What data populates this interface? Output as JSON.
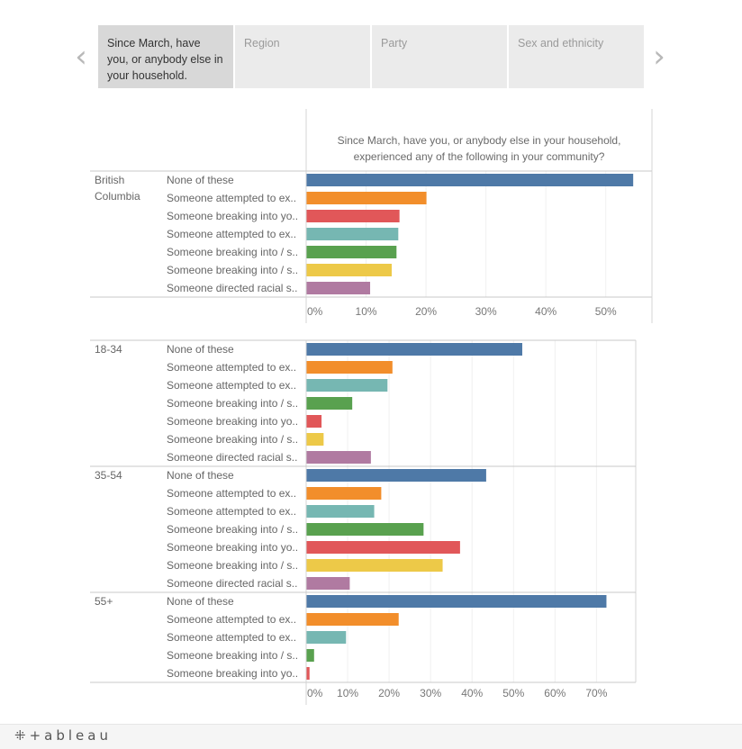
{
  "story_nav": {
    "prev_icon": "chevron-left-icon",
    "next_icon": "chevron-right-icon",
    "prev_glyph": "‹",
    "next_glyph": "›",
    "points": [
      {
        "label": "Since March, have you, or anybody else in your household.",
        "active": true
      },
      {
        "label": "Region",
        "active": false
      },
      {
        "label": "Party",
        "active": false
      },
      {
        "label": "Sex and ethnicity",
        "active": false
      }
    ]
  },
  "colors": {
    "blue": "#4e79a7",
    "orange": "#f28e2b",
    "red": "#e15759",
    "teal": "#76b7b2",
    "green": "#59a14f",
    "yellow": "#edc948",
    "purple": "#b07aa1"
  },
  "chart_data": [
    {
      "type": "bar",
      "orientation": "horizontal",
      "title": "Since March, have you, or anybody else in your household, experienced any of the following in your community?",
      "xlim": [
        0,
        55
      ],
      "x_ticks": [
        "0%",
        "10%",
        "20%",
        "30%",
        "40%",
        "50%"
      ],
      "x_tick_values": [
        0,
        10,
        20,
        30,
        40,
        50
      ],
      "groups": [
        {
          "name": "British Columbia",
          "bars": [
            {
              "label": "None of these",
              "value": 54.5,
              "color": "blue"
            },
            {
              "label": "Someone attempted to ex..",
              "value": 20,
              "color": "orange"
            },
            {
              "label": "Someone breaking into yo..",
              "value": 15.5,
              "color": "red"
            },
            {
              "label": "Someone attempted to ex..",
              "value": 15.3,
              "color": "teal"
            },
            {
              "label": "Someone breaking into / s..",
              "value": 15,
              "color": "green"
            },
            {
              "label": "Someone breaking into / s..",
              "value": 14.2,
              "color": "yellow"
            },
            {
              "label": "Someone directed racial s..",
              "value": 10.6,
              "color": "purple"
            }
          ]
        }
      ]
    },
    {
      "type": "bar",
      "orientation": "horizontal",
      "xlim": [
        0,
        76
      ],
      "x_ticks": [
        "0%",
        "10%",
        "20%",
        "30%",
        "40%",
        "50%",
        "60%",
        "70%"
      ],
      "x_tick_values": [
        0,
        10,
        20,
        30,
        40,
        50,
        60,
        70
      ],
      "groups": [
        {
          "name": "18-34",
          "bars": [
            {
              "label": "None of these",
              "value": 52,
              "color": "blue"
            },
            {
              "label": "Someone attempted to ex..",
              "value": 20.7,
              "color": "orange"
            },
            {
              "label": "Someone attempted to ex..",
              "value": 19.5,
              "color": "teal"
            },
            {
              "label": "Someone breaking into / s..",
              "value": 11,
              "color": "green"
            },
            {
              "label": "Someone breaking into yo..",
              "value": 3.6,
              "color": "red"
            },
            {
              "label": "Someone breaking into / s..",
              "value": 4.1,
              "color": "yellow"
            },
            {
              "label": "Someone directed racial s..",
              "value": 15.5,
              "color": "purple"
            }
          ]
        },
        {
          "name": "35-54",
          "bars": [
            {
              "label": "None of these",
              "value": 43.3,
              "color": "blue"
            },
            {
              "label": "Someone attempted to ex..",
              "value": 18,
              "color": "orange"
            },
            {
              "label": "Someone attempted to ex..",
              "value": 16.3,
              "color": "teal"
            },
            {
              "label": "Someone breaking into / s..",
              "value": 28.2,
              "color": "green"
            },
            {
              "label": "Someone breaking into yo..",
              "value": 37,
              "color": "red"
            },
            {
              "label": "Someone breaking into / s..",
              "value": 32.8,
              "color": "yellow"
            },
            {
              "label": "Someone directed racial s..",
              "value": 10.4,
              "color": "purple"
            }
          ]
        },
        {
          "name": "55+",
          "bars": [
            {
              "label": "None of these",
              "value": 72.3,
              "color": "blue"
            },
            {
              "label": "Someone attempted to ex..",
              "value": 22.2,
              "color": "orange"
            },
            {
              "label": "Someone attempted to ex..",
              "value": 9.5,
              "color": "teal"
            },
            {
              "label": "Someone breaking into / s..",
              "value": 1.8,
              "color": "green"
            },
            {
              "label": "Someone breaking into yo..",
              "value": 0.7,
              "color": "red"
            }
          ]
        }
      ]
    }
  ],
  "footer": {
    "logo_text": "⁜+ableau"
  }
}
